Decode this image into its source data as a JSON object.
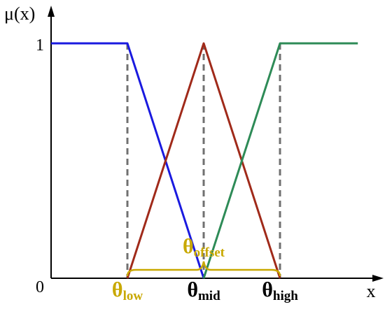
{
  "chart_data": {
    "type": "line",
    "title": "",
    "ylabel": "μ(x)",
    "xlabel": "x",
    "origin_label": "0",
    "y_tick_label": "1",
    "xlim": [
      0,
      4
    ],
    "ylim": [
      0,
      1
    ],
    "x_markers": [
      {
        "id": "low",
        "x": 1,
        "symbol": "θ",
        "sub": "low",
        "color": "#c8a800"
      },
      {
        "id": "mid",
        "x": 2,
        "symbol": "θ",
        "sub": "mid",
        "color": "#000000"
      },
      {
        "id": "high",
        "x": 3,
        "symbol": "θ",
        "sub": "high",
        "color": "#000000"
      }
    ],
    "offset_annotation": {
      "symbol": "θ",
      "sub": "offset",
      "from_x": 1,
      "to_x": 3,
      "color": "#c8a800"
    },
    "series": [
      {
        "color": "#1a1adf",
        "x": [
          0,
          1,
          2
        ],
        "y": [
          1,
          1,
          0
        ]
      },
      {
        "color": "#a02a1a",
        "x": [
          1,
          2,
          3
        ],
        "y": [
          0,
          1,
          0
        ]
      },
      {
        "color": "#2e8b57",
        "x": [
          2,
          3,
          4.02
        ],
        "y": [
          0,
          1,
          1
        ]
      }
    ],
    "guide_color": "#707070"
  }
}
